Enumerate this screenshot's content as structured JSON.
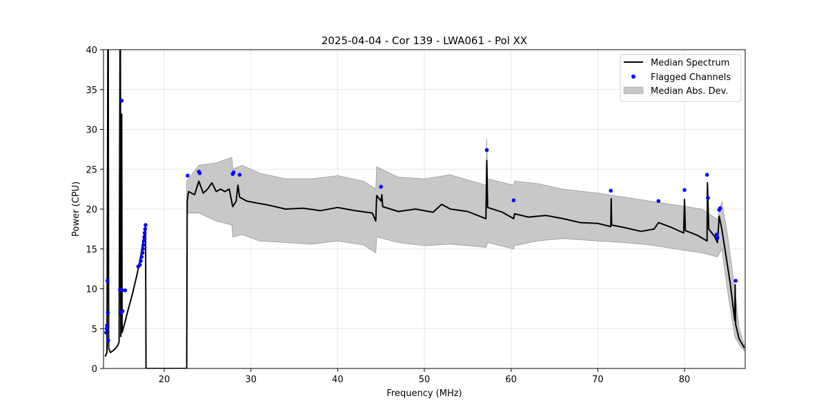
{
  "chart_data": {
    "type": "line",
    "title": "2025-04-04 - Cor 139 - LWA061 - Pol XX",
    "xlabel": "Frequency (MHz)",
    "ylabel": "Power (CPU)",
    "xlim": [
      13,
      87
    ],
    "ylim": [
      0,
      40
    ],
    "xticks": [
      20,
      30,
      40,
      50,
      60,
      70,
      80
    ],
    "yticks": [
      0,
      5,
      10,
      15,
      20,
      25,
      30,
      35,
      40
    ],
    "grid": true,
    "legend_position": "top-right",
    "series": [
      {
        "name": "Median Spectrum",
        "kind": "line",
        "color": "#000000",
        "points": [
          [
            13.2,
            1.5
          ],
          [
            13.4,
            2
          ],
          [
            13.5,
            40
          ],
          [
            13.55,
            40
          ],
          [
            13.6,
            2.5
          ],
          [
            13.8,
            2.0
          ],
          [
            14.2,
            2.3
          ],
          [
            14.6,
            2.8
          ],
          [
            14.8,
            3.3
          ],
          [
            14.9,
            40
          ],
          [
            14.95,
            40
          ],
          [
            15.0,
            4
          ],
          [
            15.1,
            31.9
          ],
          [
            15.15,
            4.5
          ],
          [
            15.4,
            5.5
          ],
          [
            15.8,
            7.2
          ],
          [
            16.3,
            9.2
          ],
          [
            16.8,
            11.5
          ],
          [
            17.2,
            13.5
          ],
          [
            17.5,
            15.5
          ],
          [
            17.8,
            17.5
          ],
          [
            17.85,
            18
          ],
          [
            17.9,
            0
          ],
          [
            22.6,
            0
          ],
          [
            22.65,
            21.0
          ],
          [
            22.8,
            22.2
          ],
          [
            23.5,
            21.8
          ],
          [
            24.0,
            23.5
          ],
          [
            24.5,
            22.0
          ],
          [
            25.0,
            22.5
          ],
          [
            25.5,
            23.3
          ],
          [
            26.0,
            22.2
          ],
          [
            26.5,
            22.5
          ],
          [
            27.0,
            22.2
          ],
          [
            27.5,
            22.5
          ],
          [
            27.9,
            20.3
          ],
          [
            28.3,
            21.0
          ],
          [
            28.5,
            23.0
          ],
          [
            28.7,
            21.5
          ],
          [
            29.5,
            21.0
          ],
          [
            30,
            20.9
          ],
          [
            32,
            20.5
          ],
          [
            34,
            20.0
          ],
          [
            36,
            20.1
          ],
          [
            38,
            19.8
          ],
          [
            40,
            20.2
          ],
          [
            42,
            19.8
          ],
          [
            44,
            19.5
          ],
          [
            44.4,
            18.5
          ],
          [
            44.5,
            21.7
          ],
          [
            45.0,
            21.0
          ],
          [
            45.1,
            21.8
          ],
          [
            45.2,
            20.3
          ],
          [
            47,
            19.7
          ],
          [
            49,
            20.0
          ],
          [
            51,
            19.6
          ],
          [
            52,
            20.6
          ],
          [
            53,
            20.0
          ],
          [
            55,
            19.7
          ],
          [
            57.1,
            18.8
          ],
          [
            57.2,
            26.1
          ],
          [
            57.3,
            20.2
          ],
          [
            59,
            19.6
          ],
          [
            60.3,
            18.8
          ],
          [
            60.4,
            19.4
          ],
          [
            62,
            19.0
          ],
          [
            64,
            19.2
          ],
          [
            66,
            18.8
          ],
          [
            68,
            18.3
          ],
          [
            70,
            18.2
          ],
          [
            71.5,
            17.8
          ],
          [
            71.55,
            21.3
          ],
          [
            71.6,
            18.0
          ],
          [
            73,
            17.7
          ],
          [
            75,
            17.2
          ],
          [
            76.5,
            17.5
          ],
          [
            77,
            18.3
          ],
          [
            78.5,
            17.7
          ],
          [
            79.9,
            17.0
          ],
          [
            80.0,
            21.2
          ],
          [
            80.1,
            17.3
          ],
          [
            81.5,
            16.7
          ],
          [
            82.6,
            16.0
          ],
          [
            82.65,
            23.3
          ],
          [
            82.8,
            17.5
          ],
          [
            83.5,
            16.5
          ],
          [
            83.8,
            15.8
          ],
          [
            84.0,
            19.1
          ],
          [
            84.3,
            17.5
          ],
          [
            84.8,
            14.0
          ],
          [
            85.3,
            10.5
          ],
          [
            85.8,
            6.0
          ],
          [
            85.85,
            10.5
          ],
          [
            85.9,
            5.5
          ],
          [
            86.3,
            3.7
          ],
          [
            86.9,
            2.6
          ]
        ]
      },
      {
        "name": "Flagged Channels",
        "kind": "scatter",
        "color": "#0000ff",
        "points": [
          [
            13.3,
            4.5
          ],
          [
            13.35,
            5.0
          ],
          [
            13.4,
            5.4
          ],
          [
            13.45,
            11.0
          ],
          [
            13.5,
            7.0
          ],
          [
            13.55,
            3.5
          ],
          [
            14.9,
            9.9
          ],
          [
            15.05,
            7.0
          ],
          [
            15.1,
            33.6
          ],
          [
            15.15,
            9.8
          ],
          [
            15.2,
            7.2
          ],
          [
            15.5,
            9.8
          ],
          [
            17.0,
            12.8
          ],
          [
            17.2,
            13.0
          ],
          [
            17.3,
            13.5
          ],
          [
            17.4,
            14.0
          ],
          [
            17.5,
            14.5
          ],
          [
            17.55,
            15.0
          ],
          [
            17.6,
            15.5
          ],
          [
            17.65,
            16.0
          ],
          [
            17.7,
            16.5
          ],
          [
            17.75,
            17.0
          ],
          [
            17.8,
            17.5
          ],
          [
            17.85,
            18.0
          ],
          [
            22.7,
            24.2
          ],
          [
            24.0,
            24.7
          ],
          [
            24.1,
            24.5
          ],
          [
            27.9,
            24.4
          ],
          [
            28.0,
            24.6
          ],
          [
            28.7,
            24.3
          ],
          [
            45.0,
            22.8
          ],
          [
            57.2,
            27.4
          ],
          [
            60.3,
            21.1
          ],
          [
            71.5,
            22.3
          ],
          [
            77.0,
            21.0
          ],
          [
            80.0,
            22.4
          ],
          [
            82.6,
            24.3
          ],
          [
            82.7,
            21.4
          ],
          [
            83.7,
            16.8
          ],
          [
            83.8,
            16.4
          ],
          [
            84.0,
            19.9
          ],
          [
            84.1,
            20.1
          ],
          [
            85.9,
            11.0
          ]
        ]
      },
      {
        "name": "Median Abs. Dev.",
        "kind": "band",
        "color": "#c8c8c8",
        "upper": [
          [
            22.6,
            23.5
          ],
          [
            24,
            25.5
          ],
          [
            26,
            25.8
          ],
          [
            27.8,
            26.5
          ],
          [
            27.9,
            25.0
          ],
          [
            29,
            25.5
          ],
          [
            31,
            24.5
          ],
          [
            34,
            23.8
          ],
          [
            37,
            23.8
          ],
          [
            40,
            24.2
          ],
          [
            43,
            23.5
          ],
          [
            44.4,
            22.5
          ],
          [
            44.5,
            25.3
          ],
          [
            47,
            24.0
          ],
          [
            50,
            23.8
          ],
          [
            53,
            24.3
          ],
          [
            57.1,
            23.0
          ],
          [
            57.2,
            28.8
          ],
          [
            57.3,
            23.8
          ],
          [
            60.3,
            23.0
          ],
          [
            60.4,
            23.5
          ],
          [
            63,
            23.2
          ],
          [
            66,
            22.5
          ],
          [
            70,
            22.0
          ],
          [
            73,
            21.5
          ],
          [
            76,
            21.0
          ],
          [
            79,
            20.5
          ],
          [
            82,
            20.0
          ],
          [
            83.8,
            18.7
          ],
          [
            84.3,
            21.0
          ],
          [
            85,
            16.5
          ],
          [
            85.8,
            10.0
          ],
          [
            86.3,
            5.0
          ],
          [
            86.9,
            3.0
          ]
        ],
        "lower": [
          [
            86.9,
            2.2
          ],
          [
            86.3,
            3.0
          ],
          [
            85.8,
            4.0
          ],
          [
            85,
            9.5
          ],
          [
            84.3,
            15.0
          ],
          [
            83.8,
            14.0
          ],
          [
            82,
            14.5
          ],
          [
            79,
            15.0
          ],
          [
            76,
            15.5
          ],
          [
            73,
            15.8
          ],
          [
            70,
            16.0
          ],
          [
            66,
            16.3
          ],
          [
            63,
            16.0
          ],
          [
            60.4,
            15.4
          ],
          [
            60.3,
            15.0
          ],
          [
            57.3,
            15.8
          ],
          [
            57.1,
            15.2
          ],
          [
            53,
            15.6
          ],
          [
            50,
            15.4
          ],
          [
            47,
            15.8
          ],
          [
            44.5,
            16.5
          ],
          [
            44.4,
            14.5
          ],
          [
            43,
            15.5
          ],
          [
            40,
            16.0
          ],
          [
            37,
            15.6
          ],
          [
            34,
            15.8
          ],
          [
            31,
            16.0
          ],
          [
            29,
            16.8
          ],
          [
            27.9,
            16.5
          ],
          [
            27.8,
            18.0
          ],
          [
            26,
            18.5
          ],
          [
            24,
            19.5
          ],
          [
            22.6,
            19.5
          ]
        ]
      }
    ]
  }
}
